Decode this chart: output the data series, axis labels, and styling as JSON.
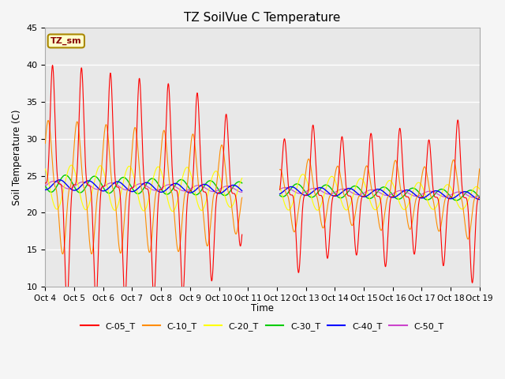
{
  "title": "TZ SoilVue C Temperature",
  "ylabel": "Soil Temperature (C)",
  "xlabel": "Time",
  "annotation": "TZ_sm",
  "ylim": [
    10,
    45
  ],
  "xlim": [
    0,
    15
  ],
  "background_color": "#f5f5f5",
  "plot_bg_color": "#e8e8e8",
  "series_colors": {
    "C-05_T": "#ff0000",
    "C-10_T": "#ff8c00",
    "C-20_T": "#ffff00",
    "C-30_T": "#00cc00",
    "C-40_T": "#0000ff",
    "C-50_T": "#cc44cc"
  },
  "tick_labels": [
    "Oct 4",
    "Oct 5",
    "Oct 6",
    "Oct 7",
    "Oct 8",
    "Oct 9",
    "Oct 10",
    "Oct 11",
    "Oct 12",
    "Oct 13",
    "Oct 14",
    "Oct 15",
    "Oct 16",
    "Oct 17",
    "Oct 18",
    "Oct 19"
  ],
  "num_days": 15,
  "points_per_day": 144,
  "figsize": [
    6.4,
    4.8
  ],
  "dpi": 100
}
